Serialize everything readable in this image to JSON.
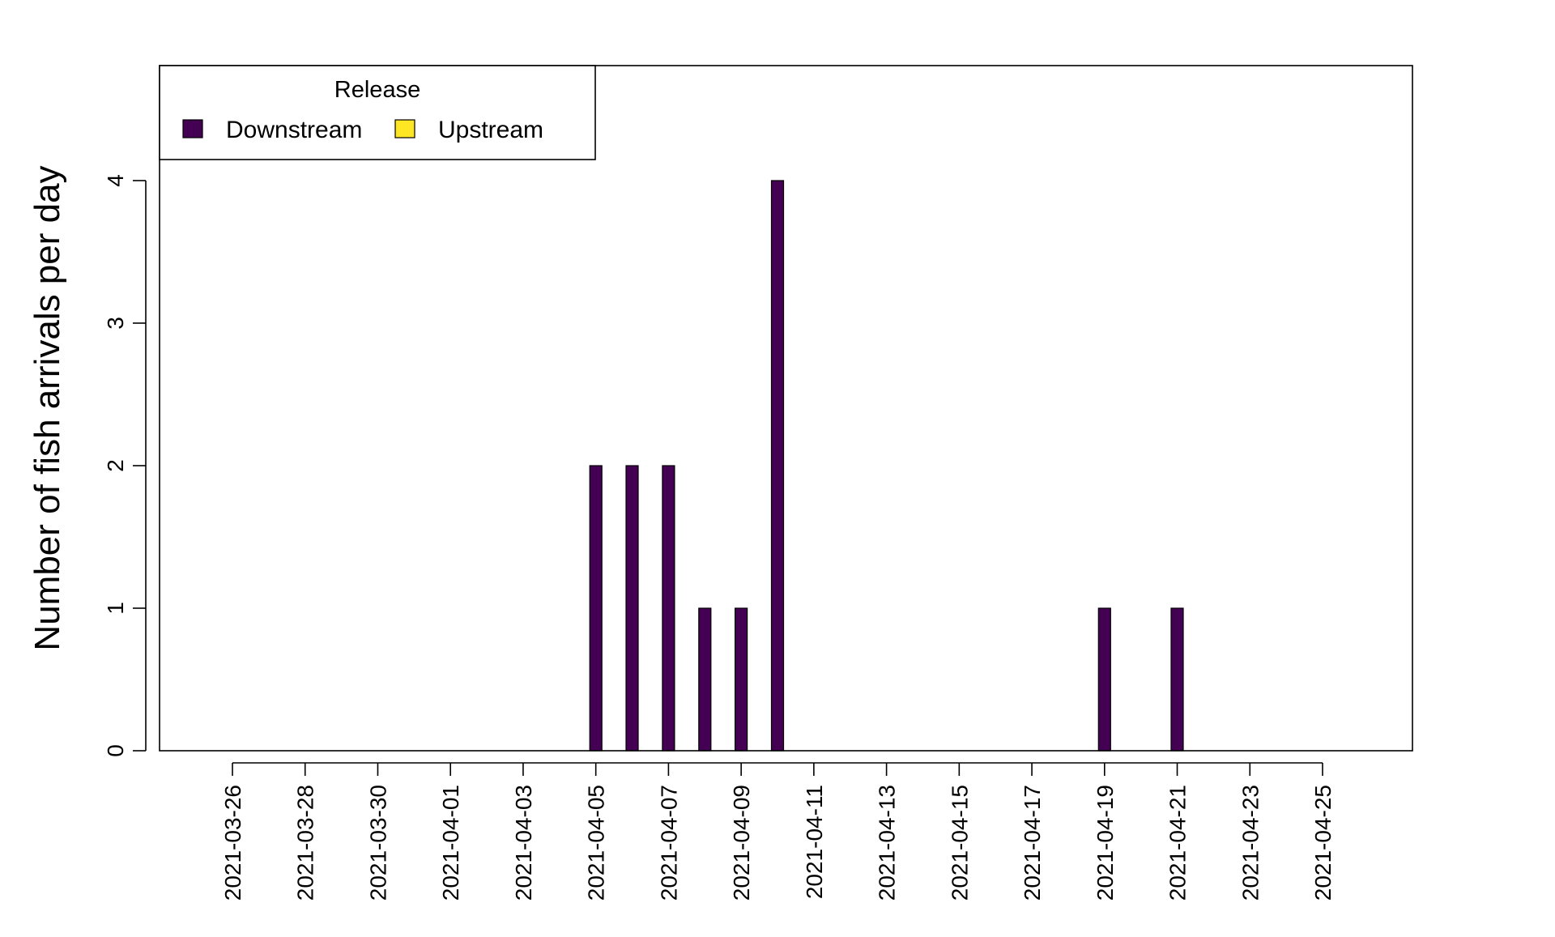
{
  "chart_data": {
    "type": "bar",
    "title": "",
    "xlabel": "",
    "ylabel": "Number of fish arrivals per day",
    "ylim": [
      0,
      4.8
    ],
    "yticks": [
      0,
      1,
      2,
      3,
      4
    ],
    "grid": false,
    "x_tick_labels": [
      "2021-03-26",
      "2021-03-28",
      "2021-03-30",
      "2021-04-01",
      "2021-04-03",
      "2021-04-05",
      "2021-04-07",
      "2021-04-09",
      "2021-04-11",
      "2021-04-13",
      "2021-04-15",
      "2021-04-17",
      "2021-04-19",
      "2021-04-21",
      "2021-04-23",
      "2021-04-25"
    ],
    "x_range": [
      "2021-03-24",
      "2021-04-28"
    ],
    "legend": {
      "title": "Release",
      "placement": "top-left",
      "entries": [
        {
          "name": "Downstream",
          "color": "#440154"
        },
        {
          "name": "Upstream",
          "color": "#FDE725"
        }
      ]
    },
    "series": [
      {
        "name": "Downstream",
        "color": "#440154",
        "points": [
          {
            "x": "2021-04-05",
            "y": 2
          },
          {
            "x": "2021-04-06",
            "y": 2
          },
          {
            "x": "2021-04-07",
            "y": 2
          },
          {
            "x": "2021-04-08",
            "y": 1
          },
          {
            "x": "2021-04-09",
            "y": 1
          },
          {
            "x": "2021-04-10",
            "y": 4
          },
          {
            "x": "2021-04-19",
            "y": 1
          },
          {
            "x": "2021-04-21",
            "y": 1
          }
        ]
      },
      {
        "name": "Upstream",
        "color": "#FDE725",
        "points": []
      }
    ]
  }
}
